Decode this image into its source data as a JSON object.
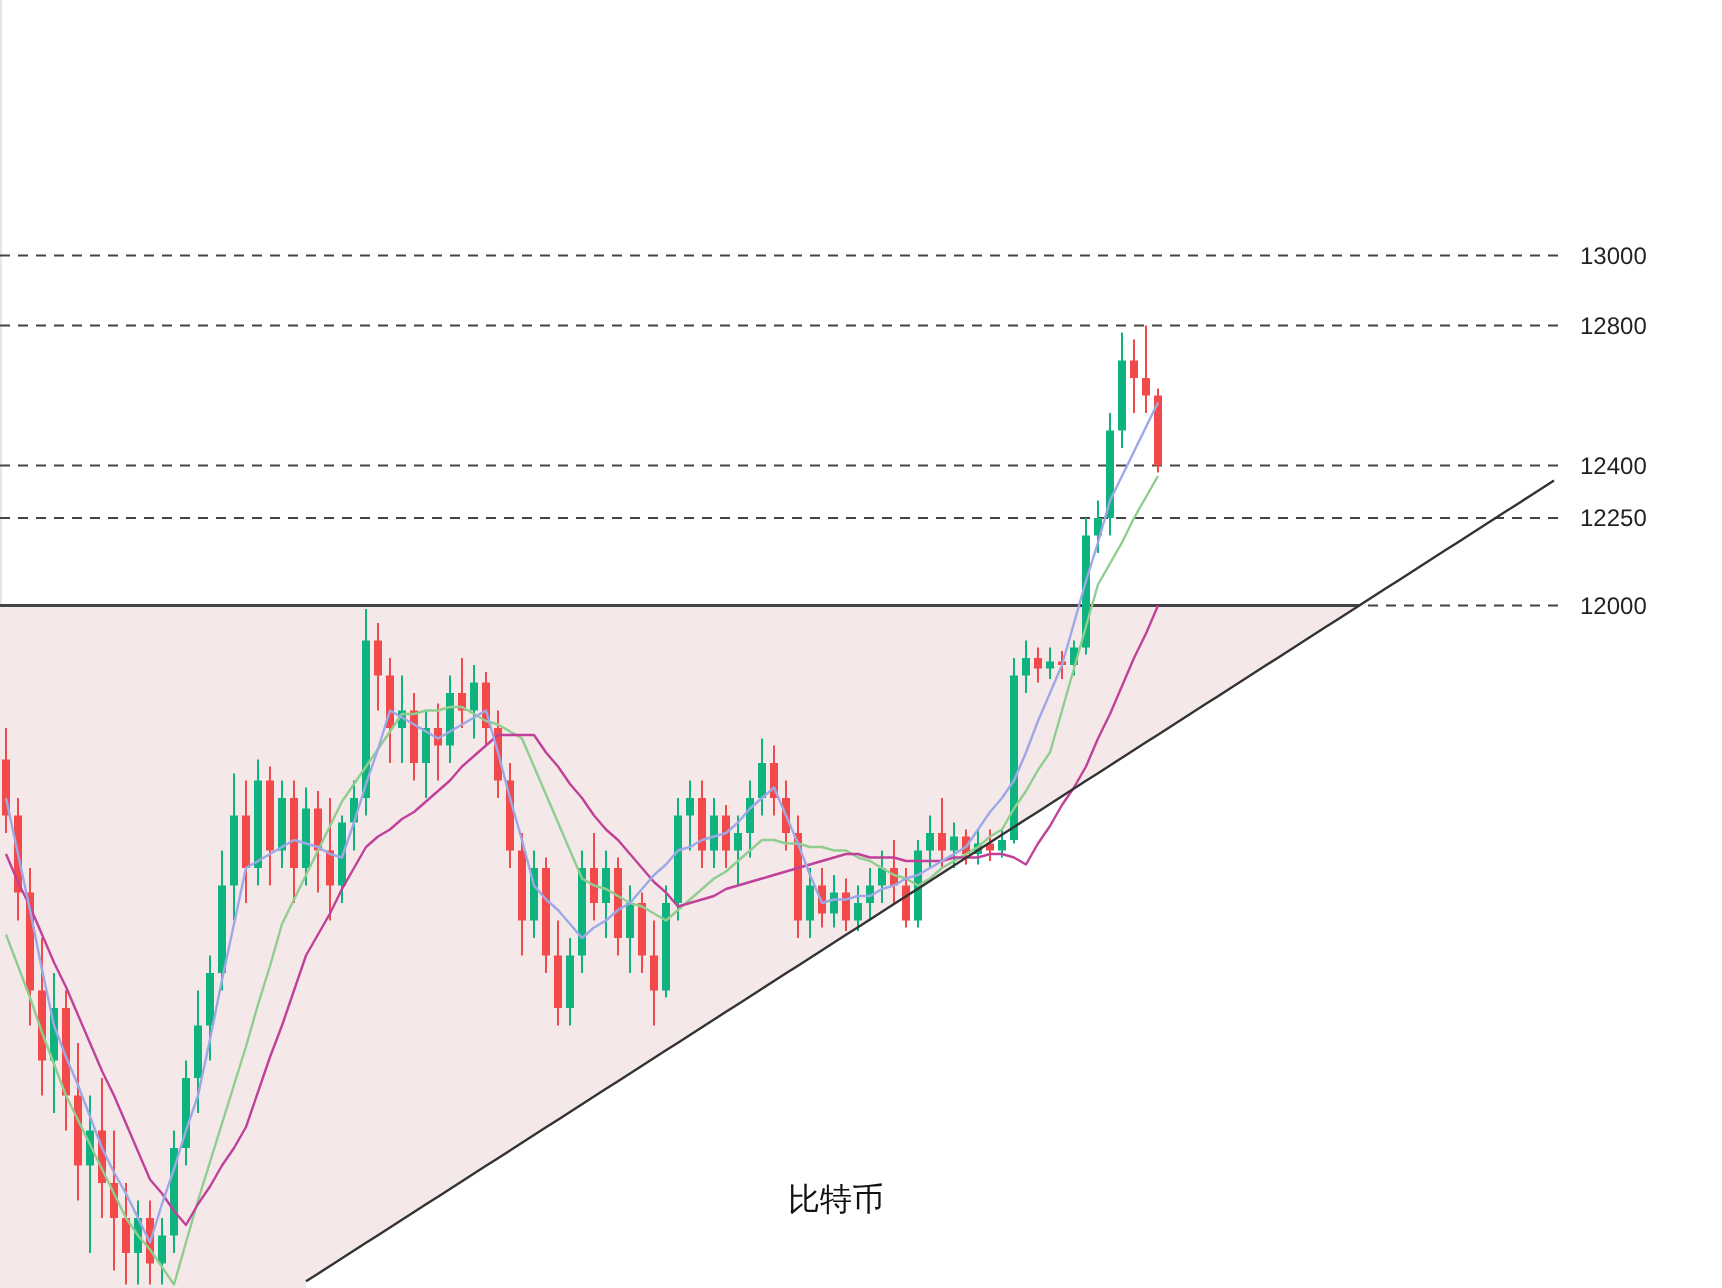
{
  "chart_data": {
    "type": "candlestick",
    "categories": [
      null,
      null,
      null,
      null,
      null,
      null,
      null,
      null,
      null,
      null,
      null,
      null,
      null,
      null,
      null,
      null,
      null,
      null,
      null,
      null,
      null,
      null,
      null,
      null,
      null,
      null,
      null,
      null,
      null,
      null,
      null,
      null,
      null,
      null,
      null,
      null,
      null,
      null,
      null,
      null,
      null,
      null,
      null,
      null,
      null,
      null,
      null,
      null,
      null,
      null,
      null,
      null,
      null,
      null,
      null,
      null,
      null,
      null,
      null,
      null,
      null,
      null,
      null,
      null,
      null,
      null,
      null,
      null,
      null,
      null,
      null,
      null,
      null,
      null,
      null,
      null,
      null,
      null,
      null,
      null,
      null,
      null,
      null,
      null,
      null,
      null,
      null,
      null,
      null,
      null,
      null,
      null,
      null,
      null,
      null,
      null,
      null,
      null,
      null,
      null,
      null,
      null,
      null,
      null,
      null,
      null,
      null,
      null,
      null,
      null,
      null,
      null,
      null,
      null,
      null,
      null,
      null,
      null,
      null,
      null,
      null,
      null,
      null,
      null,
      null,
      null,
      null,
      null,
      null,
      null
    ],
    "ohlc": [
      [
        11560,
        11650,
        11350,
        11400
      ],
      [
        11400,
        11450,
        11100,
        11180
      ],
      [
        11180,
        11250,
        10800,
        10900
      ],
      [
        10900,
        11050,
        10600,
        10700
      ],
      [
        10700,
        10950,
        10550,
        10850
      ],
      [
        10850,
        10900,
        10500,
        10600
      ],
      [
        10600,
        10750,
        10300,
        10400
      ],
      [
        10400,
        10600,
        10150,
        10500
      ],
      [
        10500,
        10650,
        10250,
        10350
      ],
      [
        10350,
        10500,
        10100,
        10250
      ],
      [
        10250,
        10350,
        10060,
        10150
      ],
      [
        10150,
        10300,
        10060,
        10250
      ],
      [
        10250,
        10300,
        10060,
        10120
      ],
      [
        10120,
        10250,
        10060,
        10200
      ],
      [
        10200,
        10500,
        10150,
        10450
      ],
      [
        10450,
        10700,
        10400,
        10650
      ],
      [
        10650,
        10900,
        10550,
        10800
      ],
      [
        10800,
        11000,
        10700,
        10950
      ],
      [
        10950,
        11300,
        10900,
        11200
      ],
      [
        11200,
        11520,
        11100,
        11400
      ],
      [
        11400,
        11500,
        11150,
        11250
      ],
      [
        11250,
        11560,
        11200,
        11500
      ],
      [
        11500,
        11540,
        11200,
        11300
      ],
      [
        11300,
        11500,
        11250,
        11450
      ],
      [
        11450,
        11500,
        11150,
        11250
      ],
      [
        11250,
        11480,
        11200,
        11420
      ],
      [
        11420,
        11470,
        11180,
        11300
      ],
      [
        11300,
        11450,
        11100,
        11200
      ],
      [
        11200,
        11400,
        11150,
        11380
      ],
      [
        11380,
        11500,
        11300,
        11450
      ],
      [
        11450,
        11990,
        11400,
        11900
      ],
      [
        11900,
        11950,
        11700,
        11800
      ],
      [
        11800,
        11850,
        11550,
        11650
      ],
      [
        11650,
        11800,
        11550,
        11700
      ],
      [
        11700,
        11750,
        11500,
        11550
      ],
      [
        11550,
        11700,
        11450,
        11650
      ],
      [
        11650,
        11720,
        11500,
        11600
      ],
      [
        11600,
        11800,
        11550,
        11750
      ],
      [
        11750,
        11850,
        11650,
        11700
      ],
      [
        11700,
        11830,
        11620,
        11780
      ],
      [
        11780,
        11810,
        11600,
        11650
      ],
      [
        11650,
        11700,
        11450,
        11500
      ],
      [
        11500,
        11550,
        11250,
        11300
      ],
      [
        11300,
        11350,
        11000,
        11100
      ],
      [
        11100,
        11300,
        11050,
        11250
      ],
      [
        11250,
        11280,
        10950,
        11000
      ],
      [
        11000,
        11100,
        10800,
        10850
      ],
      [
        10850,
        11050,
        10800,
        11000
      ],
      [
        11000,
        11300,
        10950,
        11250
      ],
      [
        11250,
        11350,
        11100,
        11150
      ],
      [
        11150,
        11300,
        11050,
        11250
      ],
      [
        11250,
        11280,
        11000,
        11050
      ],
      [
        11050,
        11200,
        10950,
        11150
      ],
      [
        11150,
        11180,
        10950,
        11000
      ],
      [
        11000,
        11100,
        10800,
        10900
      ],
      [
        10900,
        11200,
        10880,
        11150
      ],
      [
        11150,
        11450,
        11100,
        11400
      ],
      [
        11400,
        11500,
        11300,
        11450
      ],
      [
        11450,
        11500,
        11250,
        11300
      ],
      [
        11300,
        11450,
        11250,
        11400
      ],
      [
        11400,
        11430,
        11250,
        11300
      ],
      [
        11300,
        11400,
        11200,
        11350
      ],
      [
        11350,
        11500,
        11280,
        11450
      ],
      [
        11450,
        11620,
        11400,
        11550
      ],
      [
        11550,
        11600,
        11400,
        11450
      ],
      [
        11450,
        11500,
        11300,
        11350
      ],
      [
        11350,
        11400,
        11050,
        11100
      ],
      [
        11100,
        11250,
        11050,
        11200
      ],
      [
        11200,
        11250,
        11080,
        11120
      ],
      [
        11120,
        11230,
        11080,
        11180
      ],
      [
        11180,
        11220,
        11070,
        11100
      ],
      [
        11100,
        11200,
        11070,
        11150
      ],
      [
        11150,
        11250,
        11100,
        11200
      ],
      [
        11200,
        11300,
        11150,
        11250
      ],
      [
        11250,
        11330,
        11150,
        11200
      ],
      [
        11200,
        11250,
        11080,
        11100
      ],
      [
        11100,
        11330,
        11080,
        11300
      ],
      [
        11300,
        11400,
        11250,
        11350
      ],
      [
        11350,
        11450,
        11250,
        11300
      ],
      [
        11300,
        11380,
        11250,
        11340
      ],
      [
        11340,
        11360,
        11260,
        11290
      ],
      [
        11290,
        11360,
        11260,
        11320
      ],
      [
        11320,
        11360,
        11270,
        11300
      ],
      [
        11300,
        11360,
        11280,
        11330
      ],
      [
        11330,
        11850,
        11320,
        11800
      ],
      [
        11800,
        11900,
        11750,
        11850
      ],
      [
        11850,
        11880,
        11780,
        11820
      ],
      [
        11820,
        11880,
        11790,
        11840
      ],
      [
        11840,
        11870,
        11790,
        11830
      ],
      [
        11830,
        11900,
        11800,
        11880
      ],
      [
        11880,
        12250,
        11860,
        12200
      ],
      [
        12200,
        12300,
        12150,
        12250
      ],
      [
        12250,
        12550,
        12200,
        12500
      ],
      [
        12500,
        12780,
        12450,
        12700
      ],
      [
        12700,
        12760,
        12550,
        12650
      ],
      [
        12650,
        12800,
        12550,
        12600
      ],
      [
        12600,
        12620,
        12380,
        12400
      ],
      null,
      null,
      null,
      null,
      null,
      null,
      null,
      null,
      null,
      null,
      null,
      null,
      null,
      null,
      null,
      null,
      null,
      null,
      null,
      null,
      null,
      null,
      null,
      null,
      null,
      null,
      null,
      null,
      null,
      null,
      null,
      null,
      null
    ],
    "colors": [
      "#f24a4a",
      "#f24a4a",
      "#f24a4a",
      "#f24a4a",
      "#0fb37f",
      "#f24a4a",
      "#f24a4a",
      "#0fb37f",
      "#f24a4a",
      "#f24a4a",
      "#f24a4a",
      "#0fb37f",
      "#f24a4a",
      "#0fb37f",
      "#0fb37f",
      "#0fb37f",
      "#0fb37f",
      "#0fb37f",
      "#0fb37f",
      "#0fb37f",
      "#f24a4a",
      "#0fb37f",
      "#f24a4a",
      "#0fb37f",
      "#f24a4a",
      "#0fb37f",
      "#f24a4a",
      "#f24a4a",
      "#0fb37f",
      "#0fb37f",
      "#0fb37f",
      "#f24a4a",
      "#f24a4a",
      "#0fb37f",
      "#f24a4a",
      "#0fb37f",
      "#f24a4a",
      "#0fb37f",
      "#f24a4a",
      "#0fb37f",
      "#f24a4a",
      "#f24a4a",
      "#f24a4a",
      "#f24a4a",
      "#0fb37f",
      "#f24a4a",
      "#f24a4a",
      "#0fb37f",
      "#0fb37f",
      "#f24a4a",
      "#0fb37f",
      "#f24a4a",
      "#0fb37f",
      "#f24a4a",
      "#f24a4a",
      "#0fb37f",
      "#0fb37f",
      "#0fb37f",
      "#f24a4a",
      "#0fb37f",
      "#f24a4a",
      "#0fb37f",
      "#0fb37f",
      "#0fb37f",
      "#f24a4a",
      "#f24a4a",
      "#f24a4a",
      "#0fb37f",
      "#f24a4a",
      "#0fb37f",
      "#f24a4a",
      "#0fb37f",
      "#0fb37f",
      "#0fb37f",
      "#f24a4a",
      "#f24a4a",
      "#0fb37f",
      "#0fb37f",
      "#f24a4a",
      "#0fb37f",
      "#f24a4a",
      "#0fb37f",
      "#f24a4a",
      "#0fb37f",
      "#0fb37f",
      "#0fb37f",
      "#f24a4a",
      "#0fb37f",
      "#f24a4a",
      "#0fb37f",
      "#0fb37f",
      "#0fb37f",
      "#0fb37f",
      "#0fb37f",
      "#f24a4a",
      "#f24a4a",
      "#f24a4a",
      null,
      null,
      null,
      null,
      null,
      null,
      null,
      null,
      null,
      null,
      null,
      null,
      null,
      null,
      null,
      null,
      null,
      null,
      null,
      null,
      null,
      null,
      null,
      null,
      null,
      null,
      null,
      null,
      null,
      null,
      null,
      null,
      null
    ],
    "series": [
      {
        "type": "line",
        "color": "#8fce8f",
        "values": [
          11060,
          10970,
          10880,
          10780,
          10690,
          10600,
          10530,
          10460,
          10390,
          10320,
          10250,
          10200,
          10160,
          10110,
          10060,
          10180,
          10300,
          10410,
          10520,
          10630,
          10740,
          10860,
          10970,
          11090,
          11160,
          11230,
          11300,
          11370,
          11440,
          11490,
          11540,
          11590,
          11640,
          11690,
          11690,
          11700,
          11700,
          11710,
          11710,
          11690,
          11670,
          11660,
          11640,
          11620,
          11540,
          11460,
          11380,
          11300,
          11220,
          11200,
          11190,
          11170,
          11150,
          11140,
          11120,
          11100,
          11130,
          11160,
          11190,
          11220,
          11240,
          11270,
          11300,
          11330,
          11330,
          11320,
          11320,
          11310,
          11310,
          11300,
          11300,
          11280,
          11270,
          11250,
          11230,
          11220,
          11200,
          11220,
          11250,
          11270,
          11290,
          11310,
          11340,
          11360,
          11420,
          11470,
          11530,
          11580,
          11700,
          11820,
          11940,
          12060,
          12120,
          12180,
          12250,
          12310,
          12370,
          null,
          null,
          null,
          null,
          null,
          null,
          null,
          null,
          null,
          null,
          null,
          null,
          null,
          null,
          null,
          null,
          null,
          null,
          null,
          null,
          null,
          null,
          null,
          null,
          null,
          null,
          null,
          null,
          null,
          null,
          null,
          null,
          null
        ]
      },
      {
        "type": "line",
        "color": "#c0409a",
        "values": [
          11290,
          11210,
          11140,
          11060,
          10980,
          10910,
          10830,
          10750,
          10670,
          10600,
          10520,
          10440,
          10360,
          10320,
          10270,
          10230,
          10290,
          10340,
          10400,
          10450,
          10510,
          10610,
          10710,
          10800,
          10900,
          11000,
          11060,
          11120,
          11190,
          11250,
          11310,
          11340,
          11360,
          11390,
          11410,
          11440,
          11470,
          11500,
          11540,
          11570,
          11600,
          11630,
          11630,
          11630,
          11630,
          11580,
          11540,
          11490,
          11450,
          11400,
          11360,
          11330,
          11290,
          11250,
          11210,
          11180,
          11140,
          11150,
          11160,
          11170,
          11190,
          11200,
          11210,
          11220,
          11230,
          11240,
          11250,
          11260,
          11270,
          11280,
          11290,
          11290,
          11280,
          11280,
          11280,
          11270,
          11270,
          11270,
          11270,
          11280,
          11280,
          11280,
          11290,
          11290,
          11280,
          11260,
          11320,
          11370,
          11430,
          11480,
          11540,
          11620,
          11690,
          11770,
          11850,
          11920,
          12000,
          null,
          null,
          null,
          null,
          null,
          null,
          null,
          null,
          null,
          null,
          null,
          null,
          null,
          null,
          null,
          null,
          null,
          null,
          null,
          null,
          null,
          null,
          null,
          null,
          null,
          null,
          null,
          null,
          null,
          null,
          null,
          null,
          null
        ]
      },
      {
        "type": "line",
        "color": "#9da8e8",
        "values": [
          11450,
          11290,
          11130,
          10960,
          10800,
          10710,
          10630,
          10540,
          10450,
          10380,
          10320,
          10250,
          10180,
          10290,
          10390,
          10500,
          10600,
          10760,
          10930,
          11090,
          11250,
          11270,
          11290,
          11310,
          11330,
          11320,
          11310,
          11290,
          11280,
          11380,
          11490,
          11590,
          11700,
          11680,
          11660,
          11640,
          11620,
          11640,
          11660,
          11680,
          11700,
          11580,
          11450,
          11330,
          11200,
          11160,
          11130,
          11090,
          11050,
          11080,
          11100,
          11130,
          11150,
          11190,
          11230,
          11260,
          11300,
          11310,
          11330,
          11340,
          11350,
          11380,
          11420,
          11450,
          11480,
          11400,
          11320,
          11230,
          11150,
          11160,
          11160,
          11170,
          11170,
          11190,
          11200,
          11220,
          11230,
          11250,
          11270,
          11290,
          11310,
          11360,
          11410,
          11450,
          11500,
          11580,
          11670,
          11750,
          11830,
          11950,
          12070,
          12180,
          12300,
          12370,
          12440,
          12510,
          12580,
          null,
          null,
          null,
          null,
          null,
          null,
          null,
          null,
          null,
          null,
          null,
          null,
          null,
          null,
          null,
          null,
          null,
          null,
          null,
          null,
          null,
          null,
          null,
          null,
          null,
          null,
          null,
          null,
          null,
          null,
          null,
          null,
          null
        ]
      },
      {
        "type": "line",
        "color": "#333333",
        "values": [
          null,
          null,
          null,
          null,
          null,
          null,
          null,
          null,
          null,
          null,
          null,
          null,
          null,
          null,
          null,
          null,
          null,
          null,
          null,
          null,
          null,
          null,
          null,
          null,
          null,
          10069,
          10091,
          10113,
          10135,
          10157,
          10179,
          10201,
          10223,
          10245,
          10267,
          10289,
          10311,
          10333,
          10355,
          10377,
          10399,
          10421,
          10443,
          10465,
          10487,
          10509,
          10531,
          10553,
          10575,
          10597,
          10619,
          10641,
          10663,
          10685,
          10707,
          10729,
          10751,
          10773,
          10795,
          10817,
          10839,
          10861,
          10883,
          10905,
          10927,
          10949,
          10971,
          10993,
          11015,
          11037,
          11059,
          11081,
          11103,
          11125,
          11147,
          11169,
          11191,
          11213,
          11235,
          11257,
          11279,
          11301,
          11323,
          11345,
          11367,
          11389,
          11411,
          11433,
          11455,
          11477,
          11499,
          11521,
          11543,
          11565,
          11587,
          11609,
          11631,
          11653,
          11675,
          11697,
          11719,
          11741,
          11763,
          11785,
          11807,
          11829,
          11851,
          11873,
          11895,
          11917,
          11939,
          11961,
          11983,
          12005,
          12027,
          12049,
          12071,
          12093,
          12115,
          12137,
          12159,
          12181,
          12203,
          12225,
          12247,
          12269,
          12291,
          12313,
          12335,
          12357
        ]
      }
    ],
    "ref_lines": [
      {
        "axis": "y",
        "value": 12000,
        "line_style": "solid",
        "color": "#444444"
      }
    ],
    "grid": "y",
    "ylim": [
      10050,
      13730
    ],
    "annotations": [
      "比特币"
    ],
    "yticks": [
      12000,
      12250,
      12400,
      12800,
      13000
    ]
  }
}
